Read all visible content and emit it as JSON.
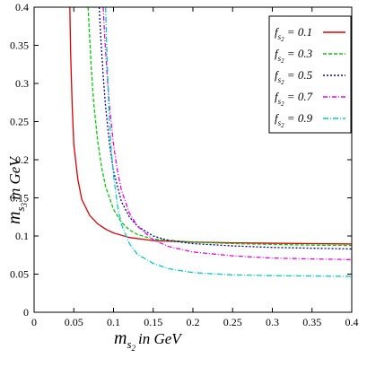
{
  "chart_data": {
    "type": "line",
    "title": "",
    "xlabel": {
      "main": "m",
      "sub": "s",
      "subsub": "2",
      "unit": "in GeV"
    },
    "ylabel": {
      "main": "m",
      "sub": "s",
      "subsub": "3",
      "unit": "in GeV"
    },
    "xlim": [
      0,
      0.4
    ],
    "ylim": [
      0,
      0.4
    ],
    "xticks": [
      "0",
      "0.05",
      "0.1",
      "0.15",
      "0.2",
      "0.25",
      "0.3",
      "0.35",
      "0.4"
    ],
    "yticks": [
      "0",
      "0.05",
      "0.1",
      "0.15",
      "0.2",
      "0.25",
      "0.3",
      "0.35",
      "0.4"
    ],
    "xtick_values": [
      0,
      0.05,
      0.1,
      0.15,
      0.2,
      0.25,
      0.3,
      0.35,
      0.4
    ],
    "ytick_values": [
      0,
      0.05,
      0.1,
      0.15,
      0.2,
      0.25,
      0.3,
      0.35,
      0.4
    ],
    "grid": false,
    "legend_position": "top-right",
    "series": [
      {
        "name": "f_s2 = 0.1",
        "label_main": "f",
        "label_sub": "s",
        "label_subsub": "2",
        "label_value": " = 0.1",
        "color": "#dd0000",
        "dash": "",
        "x": [
          0.045,
          0.046,
          0.048,
          0.05,
          0.055,
          0.06,
          0.07,
          0.08,
          0.09,
          0.1,
          0.12,
          0.15,
          0.2,
          0.25,
          0.3,
          0.35,
          0.4
        ],
        "y": [
          0.4,
          0.34,
          0.27,
          0.22,
          0.175,
          0.148,
          0.127,
          0.116,
          0.109,
          0.104,
          0.098,
          0.094,
          0.092,
          0.091,
          0.0905,
          0.09,
          0.0895
        ]
      },
      {
        "name": "f_s2 = 0.3",
        "label_main": "f",
        "label_sub": "s",
        "label_subsub": "2",
        "label_value": " = 0.3",
        "color": "#00cc00",
        "dash": "4,2",
        "x": [
          0.068,
          0.07,
          0.072,
          0.075,
          0.08,
          0.085,
          0.09,
          0.1,
          0.11,
          0.12,
          0.13,
          0.15,
          0.2,
          0.25,
          0.3,
          0.35,
          0.4
        ],
        "y": [
          0.4,
          0.36,
          0.32,
          0.275,
          0.225,
          0.19,
          0.165,
          0.135,
          0.118,
          0.108,
          0.102,
          0.096,
          0.092,
          0.09,
          0.089,
          0.088,
          0.0875
        ]
      },
      {
        "name": "f_s2 = 0.5",
        "label_main": "f",
        "label_sub": "s",
        "label_subsub": "2",
        "label_value": " = 0.5",
        "color": "#0000aa",
        "dash": "2,2",
        "x": [
          0.082,
          0.084,
          0.087,
          0.09,
          0.095,
          0.1,
          0.11,
          0.12,
          0.13,
          0.15,
          0.17,
          0.2,
          0.25,
          0.3,
          0.35,
          0.4
        ],
        "y": [
          0.4,
          0.36,
          0.31,
          0.27,
          0.22,
          0.185,
          0.145,
          0.125,
          0.113,
          0.1,
          0.094,
          0.09,
          0.087,
          0.085,
          0.084,
          0.083
        ]
      },
      {
        "name": "f_s2 = 0.7",
        "label_main": "f",
        "label_sub": "s",
        "label_subsub": "2",
        "label_value": " = 0.7",
        "color": "#ee00ee",
        "dash": "5,2,1,2",
        "x": [
          0.087,
          0.089,
          0.092,
          0.095,
          0.1,
          0.105,
          0.11,
          0.12,
          0.13,
          0.15,
          0.17,
          0.2,
          0.25,
          0.3,
          0.35,
          0.4
        ],
        "y": [
          0.4,
          0.36,
          0.31,
          0.27,
          0.22,
          0.185,
          0.16,
          0.13,
          0.113,
          0.095,
          0.086,
          0.079,
          0.074,
          0.071,
          0.07,
          0.069
        ]
      },
      {
        "name": "f_s2 = 0.9",
        "label_main": "f",
        "label_sub": "s",
        "label_subsub": "2",
        "label_value": " = 0.9",
        "color": "#00cccc",
        "dash": "6,2,1,2",
        "x": [
          0.09,
          0.092,
          0.094,
          0.097,
          0.1,
          0.105,
          0.11,
          0.12,
          0.13,
          0.15,
          0.17,
          0.2,
          0.25,
          0.3,
          0.35,
          0.4
        ],
        "y": [
          0.4,
          0.33,
          0.27,
          0.215,
          0.18,
          0.14,
          0.115,
          0.09,
          0.076,
          0.064,
          0.057,
          0.052,
          0.049,
          0.048,
          0.0475,
          0.047
        ]
      }
    ]
  }
}
